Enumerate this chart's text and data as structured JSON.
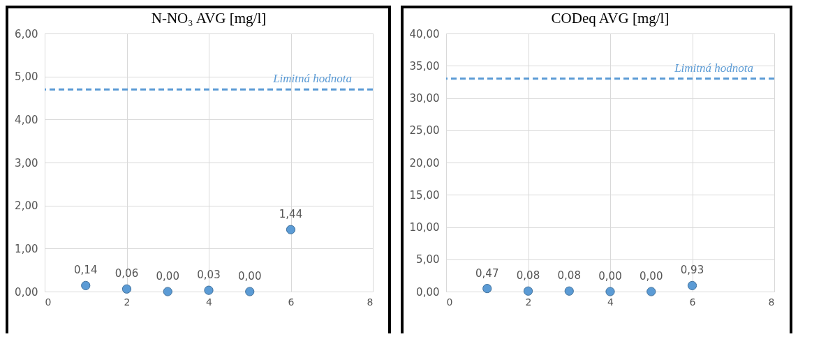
{
  "chart_data": [
    {
      "type": "scatter",
      "title": "N-NO₃ AVG [mg/l]",
      "x": [
        1,
        2,
        3,
        4,
        5,
        6
      ],
      "series": [
        {
          "color": "#5b9bd5",
          "values": [
            0.14,
            0.06,
            0.0,
            0.03,
            0.0,
            1.44
          ],
          "value_labels": [
            "0,14",
            "0,06",
            "0,00",
            "0,03",
            "0,00",
            "1,44"
          ]
        }
      ],
      "xlim": [
        0,
        8
      ],
      "xticks": [
        0,
        2,
        4,
        6,
        8
      ],
      "ylim": [
        0,
        6
      ],
      "yticks": [
        {
          "value": 0,
          "label": "0,00"
        },
        {
          "value": 1,
          "label": "1,00"
        },
        {
          "value": 2,
          "label": "2,00"
        },
        {
          "value": 3,
          "label": "3,00"
        },
        {
          "value": 4,
          "label": "4,00"
        },
        {
          "value": 5,
          "label": "5,00"
        },
        {
          "value": 6,
          "label": "6,00"
        }
      ],
      "ref_lines": [
        {
          "axis": "y",
          "value": 4.7,
          "label": "Limitná hodnota",
          "color": "#5b9bd5",
          "line_style": "dashed"
        }
      ],
      "grid": true,
      "marker": "circle"
    },
    {
      "type": "scatter",
      "title": "CODeq AVG [mg/l]",
      "x": [
        1,
        2,
        3,
        4,
        5,
        6
      ],
      "series": [
        {
          "color": "#5b9bd5",
          "values": [
            0.47,
            0.08,
            0.08,
            0.0,
            0.0,
            0.93
          ],
          "value_labels": [
            "0,47",
            "0,08",
            "0,08",
            "0,00",
            "0,00",
            "0,93"
          ]
        }
      ],
      "xlim": [
        0,
        8
      ],
      "xticks": [
        0,
        2,
        4,
        6,
        8
      ],
      "ylim": [
        0,
        40
      ],
      "yticks": [
        {
          "value": 0,
          "label": "0,00"
        },
        {
          "value": 5,
          "label": "5,00"
        },
        {
          "value": 10,
          "label": "10,00"
        },
        {
          "value": 15,
          "label": "15,00"
        },
        {
          "value": 20,
          "label": "20,00"
        },
        {
          "value": 25,
          "label": "25,00"
        },
        {
          "value": 30,
          "label": "30,00"
        },
        {
          "value": 35,
          "label": "35,00"
        },
        {
          "value": 40,
          "label": "40,00"
        }
      ],
      "ref_lines": [
        {
          "axis": "y",
          "value": 33,
          "label": "Limitná hodnota",
          "color": "#5b9bd5",
          "line_style": "dashed"
        }
      ],
      "grid": true,
      "marker": "circle"
    }
  ]
}
